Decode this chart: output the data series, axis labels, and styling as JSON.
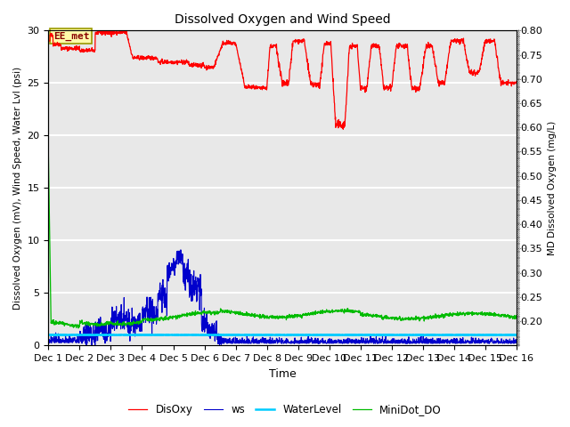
{
  "title": "Dissolved Oxygen and Wind Speed",
  "xlabel": "Time",
  "ylabel_left": "Dissolved Oxygen (mV), Wind Speed, Water Lvl (psi)",
  "ylabel_right": "MD Dissolved Oxygen (mg/L)",
  "ylim_left": [
    0,
    30
  ],
  "ylim_right": [
    0.15,
    0.8
  ],
  "yticks_left": [
    0,
    5,
    10,
    15,
    20,
    25,
    30
  ],
  "yticks_right": [
    0.2,
    0.25,
    0.3,
    0.35,
    0.4,
    0.45,
    0.5,
    0.55,
    0.6,
    0.65,
    0.7,
    0.75,
    0.8
  ],
  "xtick_labels": [
    "Dec 1",
    "Dec 2",
    "Dec 3",
    "Dec 4",
    "Dec 5",
    "Dec 6",
    "Dec 7",
    "Dec 8",
    "Dec 9",
    "Dec 10",
    "Dec 11",
    "Dec 12",
    "Dec 13",
    "Dec 14",
    "Dec 15",
    "Dec 16"
  ],
  "colors": {
    "DisOxy": "#FF0000",
    "ws": "#0000CC",
    "WaterLevel": "#00CCFF",
    "MiniDot_DO": "#00BB00"
  },
  "legend_labels": [
    "DisOxy",
    "ws",
    "WaterLevel",
    "MiniDot_DO"
  ],
  "annotation_text": "EE_met",
  "bg_color": "#E8E8E8",
  "grid_color": "#FFFFFF"
}
